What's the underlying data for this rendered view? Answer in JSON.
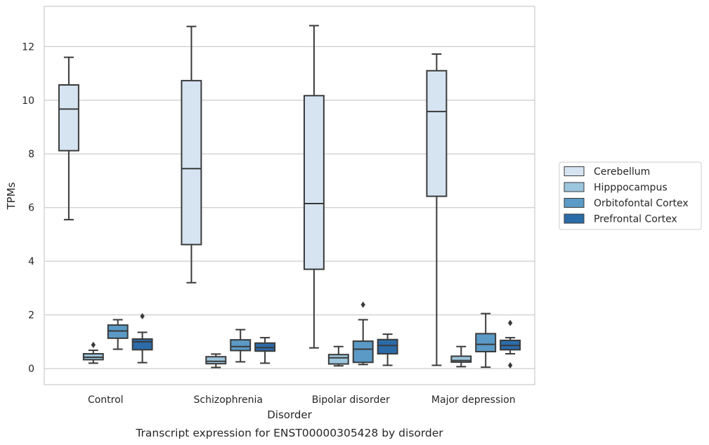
{
  "chart_data": {
    "type": "box",
    "caption": "Transcript expression for ENST00000305428 by disorder",
    "xlabel": "Disorder",
    "ylabel": "TPMs",
    "ylim": [
      -0.6,
      13.5
    ],
    "yticks": [
      0,
      2,
      4,
      6,
      8,
      10,
      12
    ],
    "grid": "horizontal",
    "legend_position": "right",
    "categories": [
      "Control",
      "Schizophrenia",
      "Bipolar disorder",
      "Major depression"
    ],
    "series": [
      {
        "name": "Cerebellum",
        "color": "#d6e4f2",
        "boxes": [
          {
            "whislo": 5.55,
            "q1": 8.12,
            "med": 9.67,
            "q3": 10.57,
            "whishi": 11.6,
            "fliers": []
          },
          {
            "whislo": 3.2,
            "q1": 4.62,
            "med": 7.45,
            "q3": 10.73,
            "whishi": 12.75,
            "fliers": []
          },
          {
            "whislo": 0.77,
            "q1": 3.7,
            "med": 6.15,
            "q3": 10.17,
            "whishi": 12.78,
            "fliers": []
          },
          {
            "whislo": 0.12,
            "q1": 6.42,
            "med": 9.58,
            "q3": 11.1,
            "whishi": 11.72,
            "fliers": []
          }
        ]
      },
      {
        "name": "Hipppocampus",
        "color": "#9cc6dd",
        "boxes": [
          {
            "whislo": 0.2,
            "q1": 0.33,
            "med": 0.42,
            "q3": 0.55,
            "whishi": 0.68,
            "fliers": [
              0.88
            ]
          },
          {
            "whislo": 0.04,
            "q1": 0.18,
            "med": 0.27,
            "q3": 0.44,
            "whishi": 0.54,
            "fliers": []
          },
          {
            "whislo": 0.1,
            "q1": 0.17,
            "med": 0.4,
            "q3": 0.52,
            "whishi": 0.82,
            "fliers": []
          },
          {
            "whislo": 0.07,
            "q1": 0.24,
            "med": 0.3,
            "q3": 0.46,
            "whishi": 0.82,
            "fliers": []
          }
        ]
      },
      {
        "name": "Orbitofontal Cortex",
        "color": "#5b9ac6",
        "boxes": [
          {
            "whislo": 0.72,
            "q1": 1.13,
            "med": 1.4,
            "q3": 1.62,
            "whishi": 1.82,
            "fliers": []
          },
          {
            "whislo": 0.25,
            "q1": 0.67,
            "med": 0.82,
            "q3": 1.07,
            "whishi": 1.45,
            "fliers": []
          },
          {
            "whislo": 0.15,
            "q1": 0.23,
            "med": 0.72,
            "q3": 1.02,
            "whishi": 1.82,
            "fliers": [
              2.38
            ]
          },
          {
            "whislo": 0.05,
            "q1": 0.63,
            "med": 0.9,
            "q3": 1.3,
            "whishi": 2.05,
            "fliers": []
          }
        ]
      },
      {
        "name": "Prefrontal Cortex",
        "color": "#2b6ba8",
        "boxes": [
          {
            "whislo": 0.22,
            "q1": 0.7,
            "med": 1.0,
            "q3": 1.1,
            "whishi": 1.35,
            "fliers": [
              1.95
            ]
          },
          {
            "whislo": 0.2,
            "q1": 0.65,
            "med": 0.78,
            "q3": 0.95,
            "whishi": 1.15,
            "fliers": []
          },
          {
            "whislo": 0.12,
            "q1": 0.55,
            "med": 0.86,
            "q3": 1.08,
            "whishi": 1.28,
            "fliers": []
          },
          {
            "whislo": 0.55,
            "q1": 0.7,
            "med": 0.86,
            "q3": 1.05,
            "whishi": 1.15,
            "fliers": [
              1.7,
              0.12
            ]
          }
        ]
      }
    ]
  }
}
